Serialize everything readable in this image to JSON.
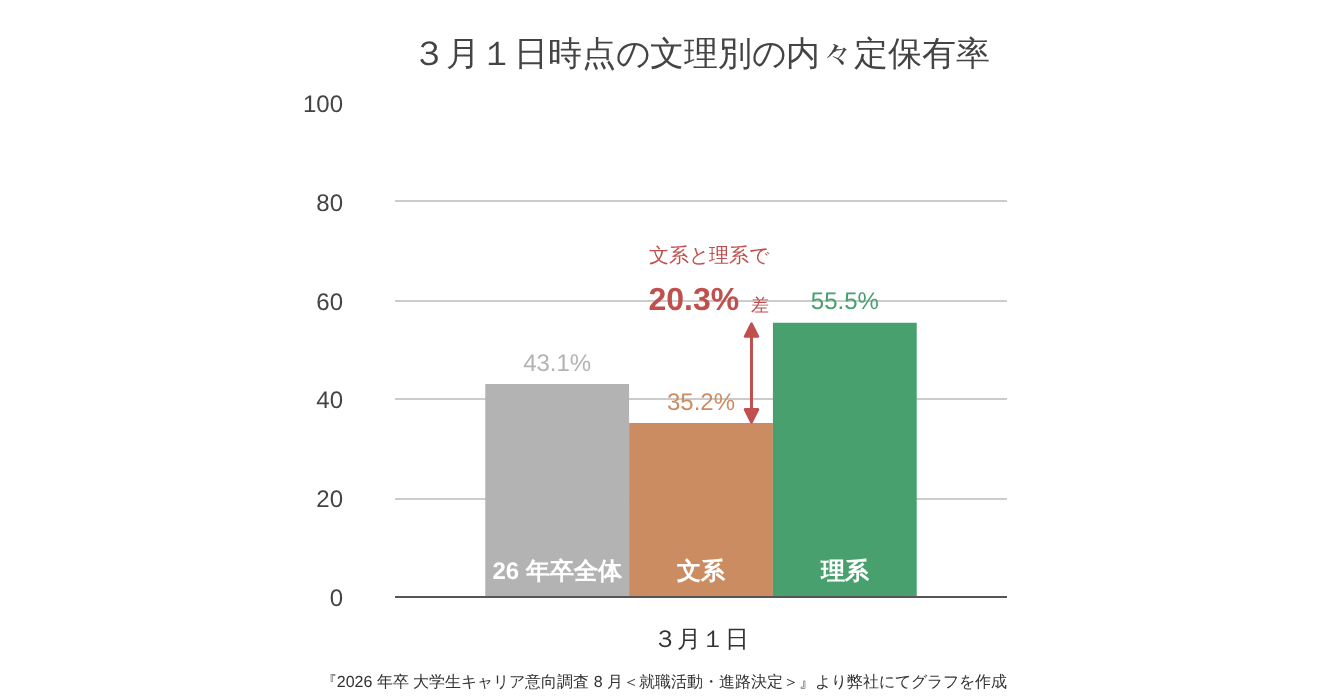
{
  "chart_data": {
    "type": "bar",
    "title": "３月１日時点の文理別の内々定保有率",
    "categories": [
      "３月１日"
    ],
    "series": [
      {
        "name": "26 年卒全体",
        "color": "#b3b3b3",
        "values": [
          43.1
        ],
        "value_labels": [
          "43.1%"
        ]
      },
      {
        "name": "文系",
        "color": "#cc8c62",
        "values": [
          35.2
        ],
        "value_labels": [
          "35.2%"
        ]
      },
      {
        "name": "理系",
        "color": "#47a06e",
        "values": [
          55.5
        ],
        "value_labels": [
          "55.5%"
        ]
      }
    ],
    "ylim": [
      0,
      100
    ],
    "yticks": [
      0,
      20,
      40,
      60,
      80,
      100
    ],
    "grid": "y",
    "legend": false,
    "annotations": [
      "文系と理系で",
      "20.3%",
      "差",
      "『2026 年卒 大学生キャリア意向調査 8 月＜就職活動・進路決定＞』より弊社にてグラフを作成"
    ]
  }
}
